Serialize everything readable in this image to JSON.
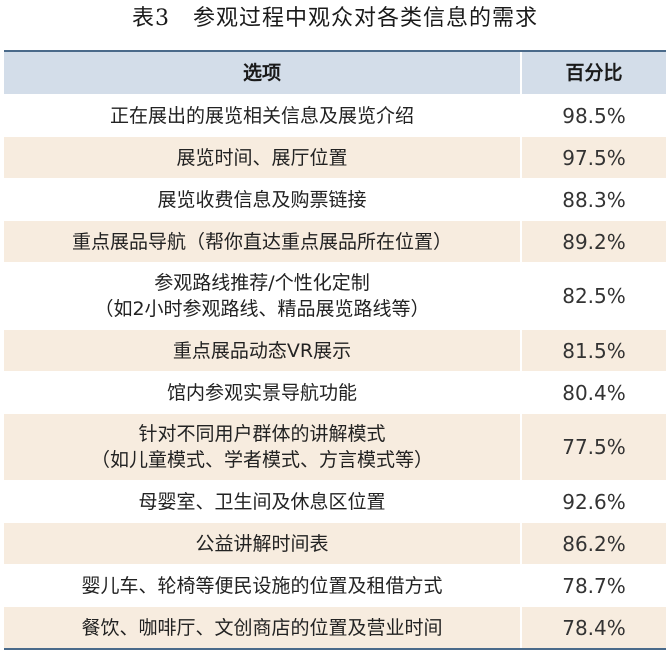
{
  "caption": "表3　参观过程中观众对各类信息的需求",
  "table": {
    "headers": [
      "选项",
      "百分比"
    ],
    "rows": [
      {
        "option": [
          "正在展出的展览相关信息及展览介绍"
        ],
        "percent": "98.5%"
      },
      {
        "option": [
          "展览时间、展厅位置"
        ],
        "percent": "97.5%"
      },
      {
        "option": [
          "展览收费信息及购票链接"
        ],
        "percent": "88.3%"
      },
      {
        "option": [
          "重点展品导航（帮你直达重点展品所在位置）"
        ],
        "percent": "89.2%"
      },
      {
        "option": [
          "参观路线推荐/个性化定制",
          "（如2小时参观路线、精品展览路线等）"
        ],
        "percent": "82.5%"
      },
      {
        "option": [
          "重点展品动态VR展示"
        ],
        "percent": "81.5%"
      },
      {
        "option": [
          "馆内参观实景导航功能"
        ],
        "percent": "80.4%"
      },
      {
        "option": [
          "针对不同用户群体的讲解模式",
          "（如儿童模式、学者模式、方言模式等）"
        ],
        "percent": "77.5%"
      },
      {
        "option": [
          "母婴室、卫生间及休息区位置"
        ],
        "percent": "92.6%"
      },
      {
        "option": [
          "公益讲解时间表"
        ],
        "percent": "86.2%"
      },
      {
        "option": [
          "婴儿车、轮椅等便民设施的位置及租借方式"
        ],
        "percent": "78.7%"
      },
      {
        "option": [
          "餐饮、咖啡厅、文创商店的位置及营业时间"
        ],
        "percent": "78.4%"
      }
    ]
  },
  "colors": {
    "header_bg": "#d3dde9",
    "stripe_bg": "#f7ecdf",
    "rule": "#4a6a8a"
  }
}
